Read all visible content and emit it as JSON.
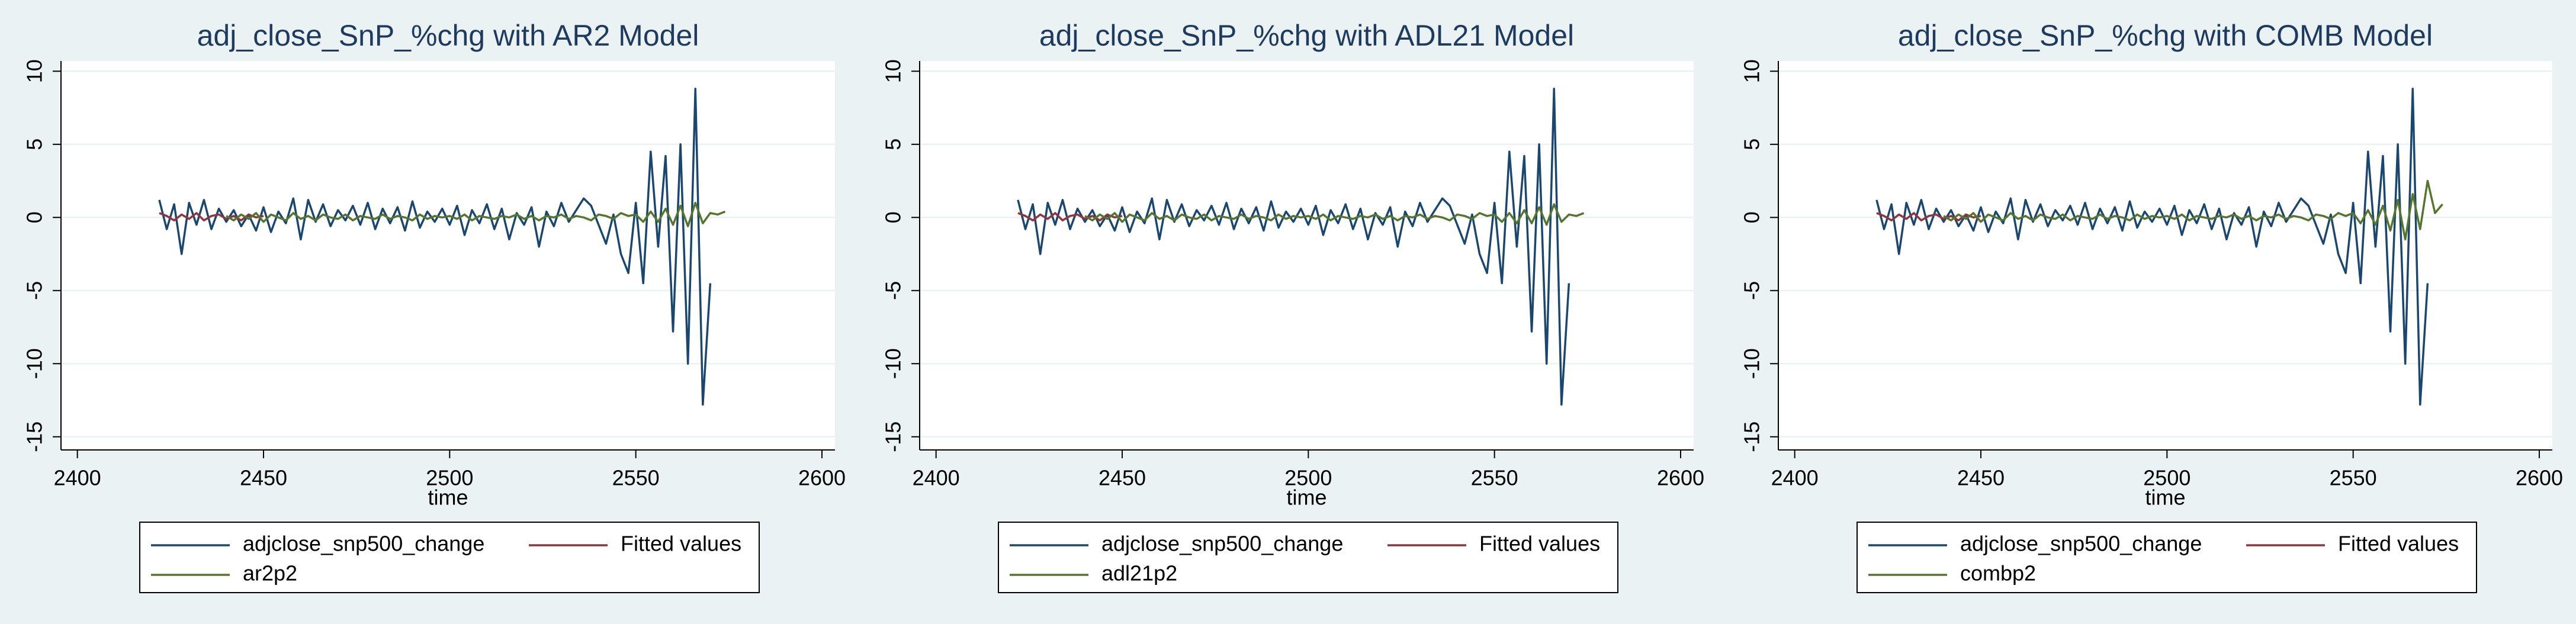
{
  "chart_data": [
    {
      "type": "line",
      "title": "adj_close_SnP_%chg with AR2 Model",
      "x_label": "time",
      "xlim": [
        2395.6,
        2603.5
      ],
      "xticks": [
        2400,
        2450,
        2500,
        2550,
        2600
      ],
      "ylim": [
        -15.9,
        10.7
      ],
      "yticks": [
        -15,
        -10,
        -5,
        0,
        5,
        10
      ],
      "grid": true,
      "x": [
        2422,
        2424,
        2426,
        2428,
        2430,
        2432,
        2434,
        2436,
        2438,
        2440,
        2442,
        2444,
        2446,
        2448,
        2450,
        2452,
        2454,
        2456,
        2458,
        2460,
        2462,
        2464,
        2466,
        2468,
        2470,
        2472,
        2474,
        2476,
        2478,
        2480,
        2482,
        2484,
        2486,
        2488,
        2490,
        2492,
        2494,
        2496,
        2498,
        2500,
        2502,
        2504,
        2506,
        2508,
        2510,
        2512,
        2514,
        2516,
        2518,
        2520,
        2522,
        2524,
        2526,
        2528,
        2530,
        2532,
        2534,
        2536,
        2538,
        2540,
        2542,
        2544,
        2546,
        2548,
        2550,
        2552,
        2554,
        2556,
        2558,
        2560,
        2562,
        2564,
        2566,
        2568,
        2570,
        2572,
        2574
      ],
      "series": [
        {
          "name": "adjclose_snp500_change",
          "color": "#1a476f",
          "values": [
            1.2,
            -0.8,
            0.9,
            -2.5,
            1.0,
            -0.5,
            1.2,
            -0.8,
            0.6,
            -0.3,
            0.5,
            -0.6,
            0.2,
            -0.9,
            0.7,
            -1.0,
            0.4,
            -0.4,
            1.3,
            -1.5,
            1.2,
            -0.3,
            0.9,
            -0.6,
            0.5,
            -0.2,
            0.8,
            -0.5,
            1.0,
            -0.8,
            0.6,
            -0.4,
            0.7,
            -0.9,
            1.1,
            -0.7,
            0.4,
            -0.3,
            0.6,
            -0.5,
            0.8,
            -1.2,
            0.5,
            -0.4,
            0.9,
            -0.8,
            0.6,
            -1.5,
            0.3,
            -0.5,
            0.7,
            -2.0,
            0.4,
            -0.6,
            1.0,
            -0.3,
            0.5,
            1.3,
            0.8,
            -0.5,
            -1.8,
            0.2,
            -2.5,
            -3.8,
            1.0,
            -4.5,
            4.5,
            -2.0,
            4.2,
            -7.8,
            5.0,
            -10.0,
            8.8,
            -12.8,
            -4.5,
            null,
            null
          ]
        },
        {
          "name": "Fitted values",
          "color": "#90353b",
          "values": [
            0.3,
            0.1,
            -0.2,
            0.2,
            -0.1,
            0.3,
            -0.2,
            0.1,
            0.2,
            -0.1,
            0.1,
            -0.2,
            0.2,
            0.0,
            0.1,
            null,
            null,
            null,
            null,
            null,
            null,
            null,
            null,
            null,
            null,
            null,
            null,
            null,
            null,
            null,
            null,
            null,
            null,
            null,
            null,
            null,
            null,
            null,
            null,
            null,
            null,
            null,
            null,
            null,
            null,
            null,
            null,
            null,
            null,
            null,
            null,
            null,
            null,
            null,
            null,
            null,
            null,
            null,
            null,
            null,
            null,
            null,
            null,
            null,
            null,
            null,
            null,
            null,
            null,
            null,
            null,
            null,
            null,
            null,
            null,
            null,
            null
          ]
        },
        {
          "name": "ar2p2",
          "color": "#55752f",
          "values": [
            null,
            null,
            null,
            null,
            null,
            null,
            null,
            null,
            null,
            0.1,
            -0.2,
            0.2,
            -0.1,
            0.3,
            -0.3,
            0.2,
            0.0,
            -0.2,
            0.3,
            -0.1,
            0.1,
            -0.2,
            0.2,
            0.0,
            -0.1,
            0.2,
            -0.2,
            0.1,
            0.0,
            -0.1,
            0.2,
            -0.1,
            0.1,
            0.0,
            -0.2,
            0.2,
            -0.1,
            0.1,
            0.0,
            0.1,
            -0.1,
            0.2,
            -0.2,
            0.1,
            0.0,
            -0.1,
            0.1,
            0.0,
            0.2,
            -0.1,
            0.1,
            -0.2,
            0.1,
            0.0,
            0.2,
            -0.1,
            0.1,
            0.0,
            -0.2,
            0.2,
            0.1,
            -0.1,
            0.3,
            0.1,
            0.2,
            -0.3,
            0.4,
            -0.3,
            0.6,
            -0.5,
            0.8,
            -0.6,
            1.0,
            -0.4,
            0.3,
            0.2,
            0.4
          ]
        }
      ]
    },
    {
      "type": "line",
      "title": "adj_close_SnP_%chg with ADL21 Model",
      "x_label": "time",
      "xlim": [
        2395.6,
        2603.5
      ],
      "xticks": [
        2400,
        2450,
        2500,
        2550,
        2600
      ],
      "ylim": [
        -15.9,
        10.7
      ],
      "yticks": [
        -15,
        -10,
        -5,
        0,
        5,
        10
      ],
      "grid": true,
      "x": [
        2422,
        2424,
        2426,
        2428,
        2430,
        2432,
        2434,
        2436,
        2438,
        2440,
        2442,
        2444,
        2446,
        2448,
        2450,
        2452,
        2454,
        2456,
        2458,
        2460,
        2462,
        2464,
        2466,
        2468,
        2470,
        2472,
        2474,
        2476,
        2478,
        2480,
        2482,
        2484,
        2486,
        2488,
        2490,
        2492,
        2494,
        2496,
        2498,
        2500,
        2502,
        2504,
        2506,
        2508,
        2510,
        2512,
        2514,
        2516,
        2518,
        2520,
        2522,
        2524,
        2526,
        2528,
        2530,
        2532,
        2534,
        2536,
        2538,
        2540,
        2542,
        2544,
        2546,
        2548,
        2550,
        2552,
        2554,
        2556,
        2558,
        2560,
        2562,
        2564,
        2566,
        2568,
        2570,
        2572,
        2574
      ],
      "series": [
        {
          "name": "adjclose_snp500_change",
          "color": "#1a476f",
          "values": [
            1.2,
            -0.8,
            0.9,
            -2.5,
            1.0,
            -0.5,
            1.2,
            -0.8,
            0.6,
            -0.3,
            0.5,
            -0.6,
            0.2,
            -0.9,
            0.7,
            -1.0,
            0.4,
            -0.4,
            1.3,
            -1.5,
            1.2,
            -0.3,
            0.9,
            -0.6,
            0.5,
            -0.2,
            0.8,
            -0.5,
            1.0,
            -0.8,
            0.6,
            -0.4,
            0.7,
            -0.9,
            1.1,
            -0.7,
            0.4,
            -0.3,
            0.6,
            -0.5,
            0.8,
            -1.2,
            0.5,
            -0.4,
            0.9,
            -0.8,
            0.6,
            -1.5,
            0.3,
            -0.5,
            0.7,
            -2.0,
            0.4,
            -0.6,
            1.0,
            -0.3,
            0.5,
            1.3,
            0.8,
            -0.5,
            -1.8,
            0.2,
            -2.5,
            -3.8,
            1.0,
            -4.5,
            4.5,
            -2.0,
            4.2,
            -7.8,
            5.0,
            -10.0,
            8.8,
            -12.8,
            -4.5,
            null,
            null
          ]
        },
        {
          "name": "Fitted values",
          "color": "#90353b",
          "values": [
            0.3,
            0.1,
            -0.2,
            0.2,
            -0.1,
            0.3,
            -0.2,
            0.1,
            0.2,
            -0.1,
            0.1,
            -0.2,
            0.2,
            0.0,
            0.1,
            null,
            null,
            null,
            null,
            null,
            null,
            null,
            null,
            null,
            null,
            null,
            null,
            null,
            null,
            null,
            null,
            null,
            null,
            null,
            null,
            null,
            null,
            null,
            null,
            null,
            null,
            null,
            null,
            null,
            null,
            null,
            null,
            null,
            null,
            null,
            null,
            null,
            null,
            null,
            null,
            null,
            null,
            null,
            null,
            null,
            null,
            null,
            null,
            null,
            null,
            null,
            null,
            null,
            null,
            null,
            null,
            null,
            null,
            null,
            null,
            null,
            null
          ]
        },
        {
          "name": "adl21p2",
          "color": "#55752f",
          "values": [
            null,
            null,
            null,
            null,
            null,
            null,
            null,
            null,
            null,
            0.1,
            -0.2,
            0.2,
            -0.1,
            0.3,
            -0.3,
            0.2,
            0.0,
            -0.2,
            0.3,
            -0.1,
            0.1,
            -0.2,
            0.2,
            0.0,
            -0.1,
            0.2,
            -0.2,
            0.1,
            0.0,
            -0.1,
            0.2,
            -0.1,
            0.1,
            0.0,
            -0.2,
            0.2,
            -0.1,
            0.1,
            0.0,
            0.1,
            -0.1,
            0.2,
            -0.2,
            0.1,
            0.0,
            -0.1,
            0.1,
            0.0,
            0.2,
            -0.1,
            0.1,
            -0.2,
            0.1,
            0.0,
            0.2,
            -0.1,
            0.1,
            0.0,
            -0.2,
            0.2,
            0.1,
            -0.1,
            0.3,
            0.1,
            0.2,
            -0.3,
            0.3,
            -0.4,
            0.5,
            -0.4,
            0.7,
            -0.5,
            0.9,
            -0.3,
            0.2,
            0.1,
            0.3
          ]
        }
      ]
    },
    {
      "type": "line",
      "title": "adj_close_SnP_%chg with COMB Model",
      "x_label": "time",
      "xlim": [
        2395.6,
        2603.5
      ],
      "xticks": [
        2400,
        2450,
        2500,
        2550,
        2600
      ],
      "ylim": [
        -15.9,
        10.7
      ],
      "yticks": [
        -15,
        -10,
        -5,
        0,
        5,
        10
      ],
      "grid": true,
      "x": [
        2422,
        2424,
        2426,
        2428,
        2430,
        2432,
        2434,
        2436,
        2438,
        2440,
        2442,
        2444,
        2446,
        2448,
        2450,
        2452,
        2454,
        2456,
        2458,
        2460,
        2462,
        2464,
        2466,
        2468,
        2470,
        2472,
        2474,
        2476,
        2478,
        2480,
        2482,
        2484,
        2486,
        2488,
        2490,
        2492,
        2494,
        2496,
        2498,
        2500,
        2502,
        2504,
        2506,
        2508,
        2510,
        2512,
        2514,
        2516,
        2518,
        2520,
        2522,
        2524,
        2526,
        2528,
        2530,
        2532,
        2534,
        2536,
        2538,
        2540,
        2542,
        2544,
        2546,
        2548,
        2550,
        2552,
        2554,
        2556,
        2558,
        2560,
        2562,
        2564,
        2566,
        2568,
        2570,
        2572,
        2574
      ],
      "series": [
        {
          "name": "adjclose_snp500_change",
          "color": "#1a476f",
          "values": [
            1.2,
            -0.8,
            0.9,
            -2.5,
            1.0,
            -0.5,
            1.2,
            -0.8,
            0.6,
            -0.3,
            0.5,
            -0.6,
            0.2,
            -0.9,
            0.7,
            -1.0,
            0.4,
            -0.4,
            1.3,
            -1.5,
            1.2,
            -0.3,
            0.9,
            -0.6,
            0.5,
            -0.2,
            0.8,
            -0.5,
            1.0,
            -0.8,
            0.6,
            -0.4,
            0.7,
            -0.9,
            1.1,
            -0.7,
            0.4,
            -0.3,
            0.6,
            -0.5,
            0.8,
            -1.2,
            0.5,
            -0.4,
            0.9,
            -0.8,
            0.6,
            -1.5,
            0.3,
            -0.5,
            0.7,
            -2.0,
            0.4,
            -0.6,
            1.0,
            -0.3,
            0.5,
            1.3,
            0.8,
            -0.5,
            -1.8,
            0.2,
            -2.5,
            -3.8,
            1.0,
            -4.5,
            4.5,
            -2.0,
            4.2,
            -7.8,
            5.0,
            -10.0,
            8.8,
            -12.8,
            -4.5,
            null,
            null
          ]
        },
        {
          "name": "Fitted values",
          "color": "#90353b",
          "values": [
            0.3,
            0.1,
            -0.2,
            0.2,
            -0.1,
            0.3,
            -0.2,
            0.1,
            0.2,
            -0.1,
            0.1,
            -0.2,
            0.2,
            0.0,
            0.1,
            null,
            null,
            null,
            null,
            null,
            null,
            null,
            null,
            null,
            null,
            null,
            null,
            null,
            null,
            null,
            null,
            null,
            null,
            null,
            null,
            null,
            null,
            null,
            null,
            null,
            null,
            null,
            null,
            null,
            null,
            null,
            null,
            null,
            null,
            null,
            null,
            null,
            null,
            null,
            null,
            null,
            null,
            null,
            null,
            null,
            null,
            null,
            null,
            null,
            null,
            null,
            null,
            null,
            null,
            null,
            null,
            null,
            null,
            null,
            null,
            null,
            null
          ]
        },
        {
          "name": "combp2",
          "color": "#55752f",
          "values": [
            null,
            null,
            null,
            null,
            null,
            null,
            null,
            null,
            null,
            0.1,
            -0.2,
            0.2,
            -0.1,
            0.3,
            -0.3,
            0.2,
            0.0,
            -0.2,
            0.3,
            -0.1,
            0.1,
            -0.2,
            0.2,
            0.0,
            -0.1,
            0.2,
            -0.2,
            0.1,
            0.0,
            -0.1,
            0.2,
            -0.1,
            0.1,
            0.0,
            -0.2,
            0.2,
            -0.1,
            0.1,
            0.0,
            0.1,
            -0.1,
            0.2,
            -0.2,
            0.1,
            0.0,
            -0.1,
            0.1,
            0.0,
            0.2,
            -0.1,
            0.1,
            -0.2,
            0.1,
            0.0,
            0.2,
            -0.1,
            0.1,
            0.0,
            -0.2,
            0.2,
            0.1,
            -0.1,
            0.3,
            0.1,
            0.3,
            -0.4,
            0.5,
            -0.5,
            0.8,
            -0.9,
            1.2,
            -1.5,
            1.6,
            -0.8,
            2.5,
            0.3,
            0.9
          ]
        }
      ]
    }
  ]
}
